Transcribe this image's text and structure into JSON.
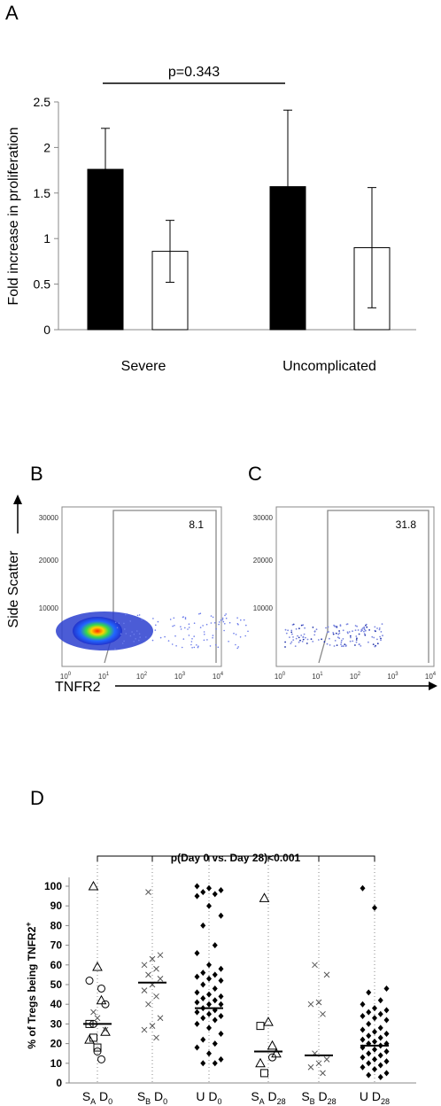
{
  "panels": {
    "a": "A",
    "b": "B",
    "c": "C",
    "d": "D"
  },
  "panelA": {
    "pvalue": "p=0.343",
    "chart_data": {
      "type": "bar",
      "ylabel": "Fold increase in proliferation",
      "ylim": [
        0,
        2.5
      ],
      "yticks": [
        "0",
        "0.5",
        "1",
        "1.5",
        "2",
        "2.5"
      ],
      "group_labels": [
        "Severe",
        "Uncomplicated"
      ],
      "bars": [
        {
          "group": "Severe",
          "fill": "#000000",
          "value": 1.76,
          "err": 0.45
        },
        {
          "group": "Severe",
          "fill": "#ffffff",
          "value": 0.86,
          "err": 0.34
        },
        {
          "group": "Uncomplicated",
          "fill": "#000000",
          "value": 1.57,
          "err": 0.84
        },
        {
          "group": "Uncomplicated",
          "fill": "#ffffff",
          "value": 0.9,
          "err": 0.66
        }
      ]
    }
  },
  "flow": {
    "y_axis_label": "Side Scatter",
    "x_axis_label": "TNFR2",
    "yticks": [
      "30000",
      "20000",
      "10000"
    ],
    "xticks": [
      "0",
      "1",
      "2",
      "3",
      "4"
    ],
    "xtick_base": "10",
    "gate_b": "8.1",
    "gate_c": "31.8"
  },
  "panelD": {
    "chart_data": {
      "type": "scatter",
      "ylabel": "% of Tregs being TNFR2",
      "ylabel_sup": "+",
      "ylim": [
        0,
        100
      ],
      "yticks": [
        "0",
        "10",
        "20",
        "30",
        "40",
        "50",
        "60",
        "70",
        "80",
        "90",
        "100"
      ],
      "pvalue": "p(Day 0 vs. Day 28)<0.001",
      "groups": [
        {
          "main": "S",
          "sub": "A",
          "day": "D",
          "day_sub": "0",
          "median": 30,
          "triangles": [
            100,
            59,
            42,
            26,
            22
          ],
          "circles": [
            48,
            40,
            52,
            30,
            16,
            12
          ],
          "squares": [
            30,
            23,
            18
          ],
          "crosses": [
            36,
            27,
            33
          ]
        },
        {
          "main": "S",
          "sub": "B",
          "day": "D",
          "day_sub": "0",
          "median": 51,
          "crosses": [
            97,
            65,
            63,
            60,
            58,
            55,
            53,
            50,
            47,
            44,
            40,
            33,
            29,
            27,
            23
          ]
        },
        {
          "main": "U",
          "sub": "",
          "day": "D",
          "day_sub": "0",
          "median": 38,
          "diamonds": [
            100,
            99,
            98,
            97,
            96,
            95,
            90,
            85,
            80,
            70,
            66,
            60,
            58,
            56,
            55,
            54,
            53,
            52,
            50,
            48,
            46,
            45,
            44,
            43,
            42,
            41,
            40,
            40,
            38,
            37,
            36,
            35,
            34,
            33,
            32,
            30,
            28,
            25,
            22,
            20,
            18,
            15,
            12,
            10,
            10
          ]
        },
        {
          "main": "S",
          "sub": "A",
          "day": "D",
          "day_sub": "28",
          "median": 16,
          "triangles": [
            94,
            31,
            19,
            15,
            10
          ],
          "circles": [
            13
          ],
          "squares": [
            29,
            5
          ]
        },
        {
          "main": "S",
          "sub": "B",
          "day": "D",
          "day_sub": "28",
          "median": 14,
          "crosses": [
            60,
            55,
            41,
            40,
            35,
            15,
            12,
            10,
            8,
            5
          ]
        },
        {
          "main": "U",
          "sub": "",
          "day": "D",
          "day_sub": "28",
          "median": 19,
          "diamonds": [
            99,
            89,
            48,
            46,
            42,
            40,
            38,
            37,
            36,
            35,
            34,
            33,
            32,
            30,
            28,
            27,
            26,
            25,
            24,
            23,
            22,
            21,
            20,
            20,
            19,
            18,
            17,
            16,
            15,
            14,
            13,
            12,
            11,
            10,
            9,
            8,
            7,
            5,
            4,
            3
          ]
        }
      ]
    }
  }
}
